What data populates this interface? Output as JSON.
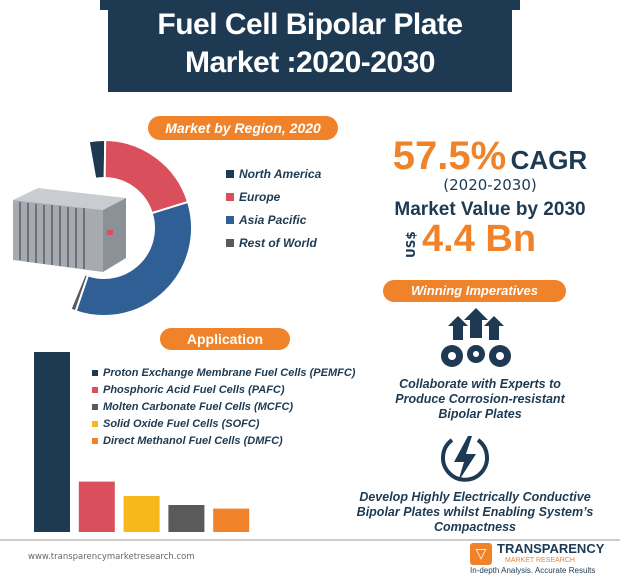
{
  "header": {
    "title_line1": "Fuel Cell Bipolar Plate",
    "title_line2": "Market :2020-2030"
  },
  "colors": {
    "navy": "#1d3a52",
    "orange": "#f0832a",
    "red": "#d9505c",
    "blue": "#2f5f95",
    "gray": "#5a5a5a",
    "yellow": "#f6b81a"
  },
  "region": {
    "label": "Market by Region, 2020"
  },
  "stats": {
    "cagr_value": "57.5%",
    "cagr_label": "CAGR",
    "period": "(2020-2030)",
    "market_value_label": "Market Value by 2030",
    "currency": "US$",
    "market_value": "4.4 Bn"
  },
  "imperatives": {
    "label": "Winning Imperatives",
    "items": [
      {
        "icon": "gears-arrows-icon",
        "text": "Collaborate with Experts to Produce Corrosion-resistant Bipolar Plates"
      },
      {
        "icon": "lightning-icon",
        "text": "Develop Highly Electrically Conductive Bipolar Plates whilst Enabling System’s Compactness"
      }
    ]
  },
  "application": {
    "label": "Application"
  },
  "chart_data": [
    {
      "type": "pie",
      "title": "Market by Region, 2020",
      "categories": [
        "North America",
        "Europe",
        "Asia Pacific",
        "Rest of World"
      ],
      "values": [
        3,
        20,
        35,
        1
      ],
      "colors": [
        "#1d3a52",
        "#d9505c",
        "#2f5f95",
        "#5a5a5a"
      ],
      "legend": "right"
    },
    {
      "type": "bar",
      "title": "Application",
      "categories": [
        "Proton Exchange Membrane Fuel Cells (PEMFC)",
        "Phosphoric Acid Fuel Cells (PAFC)",
        "Molten Carbonate Fuel Cells (MCFC)",
        "Solid Oxide Fuel Cells (SOFC)",
        "Direct Methanol Fuel Cells (DMFC)"
      ],
      "legend_colors": [
        "#1d3a52",
        "#d9505c",
        "#5a5a5a",
        "#f6b81a",
        "#f0832a"
      ],
      "bars": [
        {
          "category": "Proton Exchange Membrane Fuel Cells (PEMFC)",
          "value": 100,
          "color": "#1d3a52"
        },
        {
          "category": "Phosphoric Acid Fuel Cells (PAFC)",
          "value": 28,
          "color": "#d9505c"
        },
        {
          "category": "Solid Oxide Fuel Cells (SOFC)",
          "value": 20,
          "color": "#f6b81a"
        },
        {
          "category": "Molten Carbonate Fuel Cells (MCFC)",
          "value": 15,
          "color": "#5a5a5a"
        },
        {
          "category": "Direct Methanol Fuel Cells (DMFC)",
          "value": 13,
          "color": "#f0832a"
        }
      ],
      "legend": "right",
      "grid": false
    }
  ],
  "footer": {
    "url": "www.transparencymarketresearch.com",
    "logo_line1": "TRANSPARENCY",
    "logo_line2": "MARKET RESEARCH",
    "logo_tagline": "In-depth Analysis. Accurate Results"
  }
}
